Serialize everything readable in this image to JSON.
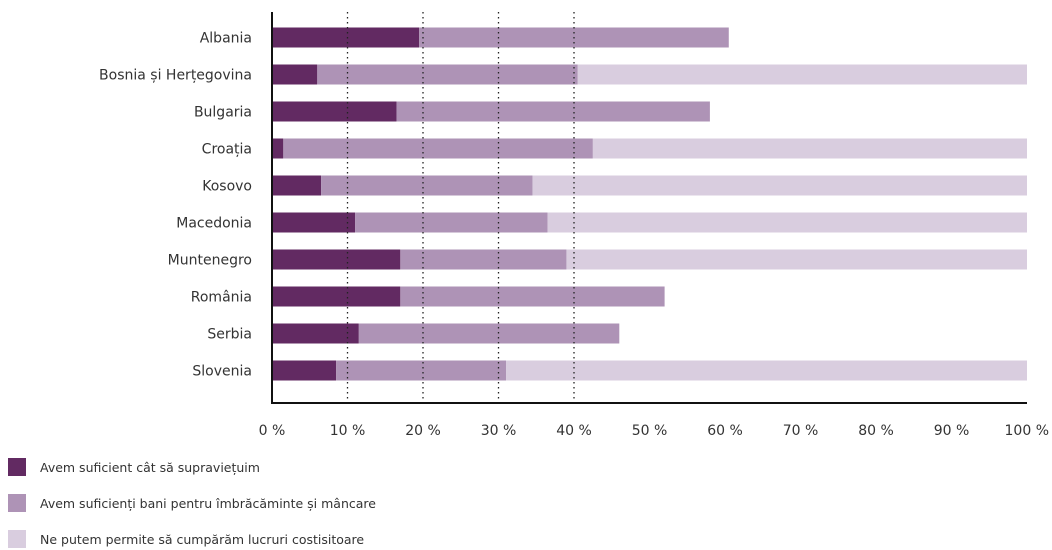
{
  "chart_data": {
    "type": "bar",
    "orientation": "horizontal",
    "stacked": true,
    "categories": [
      "Albania",
      "Bosnia și Herțegovina",
      "Bulgaria",
      "Croația",
      "Kosovo",
      "Macedonia",
      "Muntenegro",
      "România",
      "Serbia",
      "Slovenia"
    ],
    "series": [
      {
        "name": "Avem suficient cât să supraviețuim",
        "color": "#622a62",
        "values": [
          19.5,
          6,
          16.5,
          1.5,
          6.5,
          11,
          17,
          17,
          11.5,
          8.5
        ]
      },
      {
        "name": "Avem suficienți bani pentru îmbrăcăminte și mâncare",
        "color": "#ae93b6",
        "values": [
          41,
          34.5,
          41.5,
          41,
          28,
          25.5,
          22,
          35,
          34.5,
          22.5
        ]
      },
      {
        "name": "Ne putem permite să cumpărăm lucruri costisitoare",
        "color": "#d9cddf",
        "values": [
          0,
          59.5,
          0,
          57.5,
          65.5,
          63.5,
          61,
          0,
          0,
          69
        ]
      }
    ],
    "x_ticks": [
      "0 %",
      "10 %",
      "20 %",
      "30 %",
      "40 %",
      "50 %",
      "60 %",
      "70 %",
      "80 %",
      "90 %",
      "100 %"
    ],
    "xlim": [
      0,
      100
    ],
    "dotted_gridlines_at": [
      10,
      20,
      30,
      40
    ],
    "legend_position": "bottom-left"
  }
}
